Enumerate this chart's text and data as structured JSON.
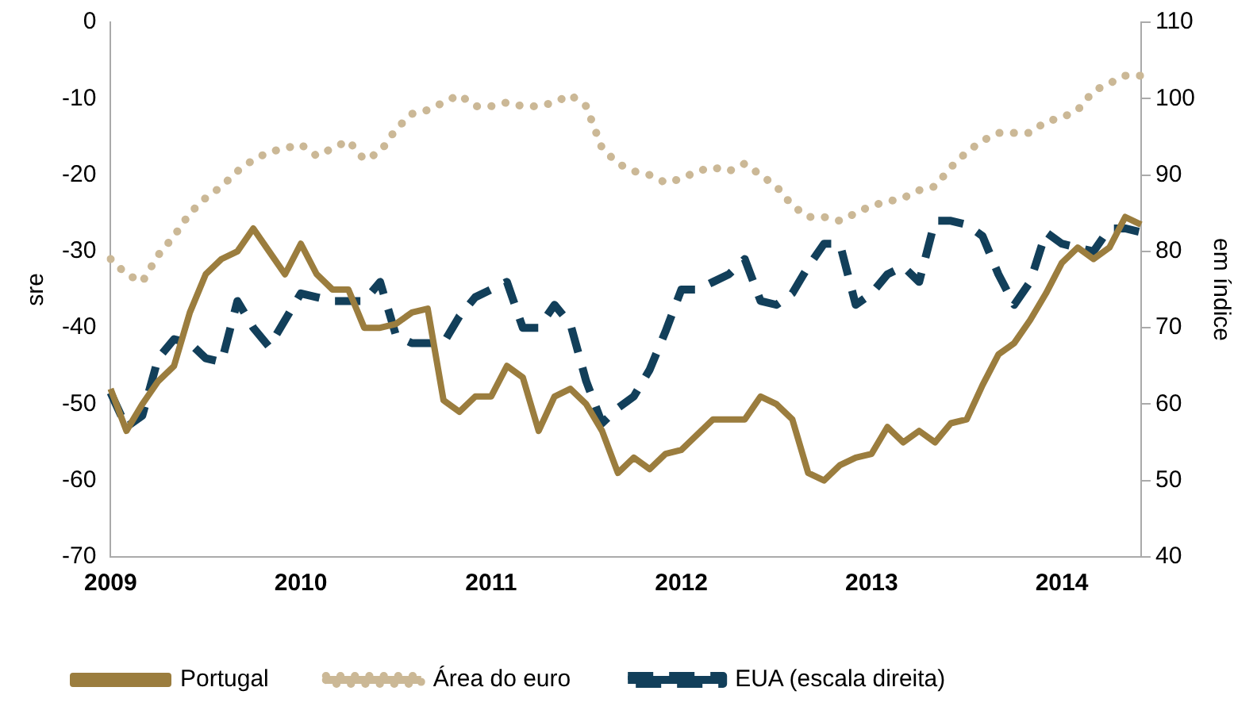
{
  "chart_data": {
    "type": "line",
    "ylabel": "sre",
    "y2label": "em índice",
    "categories": [
      "2009",
      null,
      null,
      null,
      null,
      null,
      null,
      null,
      null,
      null,
      null,
      null,
      "2010",
      null,
      null,
      null,
      null,
      null,
      null,
      null,
      null,
      null,
      null,
      null,
      "2011",
      null,
      null,
      null,
      null,
      null,
      null,
      null,
      null,
      null,
      null,
      null,
      "2012",
      null,
      null,
      null,
      null,
      null,
      null,
      null,
      null,
      null,
      null,
      null,
      "2013",
      null,
      null,
      null,
      null,
      null,
      null,
      null,
      null,
      null,
      null,
      null,
      "2014",
      null,
      null,
      null,
      null,
      null
    ],
    "ylim": [
      -70,
      0
    ],
    "yticks": [
      -70,
      -60,
      -50,
      -40,
      -30,
      -20,
      -10,
      0
    ],
    "y2lim": [
      40,
      110
    ],
    "y2ticks": [
      40,
      50,
      60,
      70,
      80,
      90,
      100,
      110
    ],
    "grid": false,
    "legend": "bottom",
    "marker": "none",
    "series": [
      {
        "name": "Portugal",
        "color": "#9b7d3e",
        "line_style": "solid",
        "values": [
          -48,
          -53.5,
          -50,
          -47,
          -45,
          -38,
          -33,
          -31,
          -30,
          -27,
          -30,
          -33,
          -29,
          -33,
          -35,
          -35,
          -40,
          -40,
          -39.5,
          -38,
          -37.5,
          -49.5,
          -51,
          -49,
          -49,
          -45,
          -46.5,
          -53.5,
          -49,
          -48,
          -50,
          -53.5,
          -59,
          -57,
          -58.5,
          -56.5,
          -56,
          -54,
          -52,
          -52,
          -52,
          -49,
          -50,
          -52,
          -59,
          -60,
          -58,
          -57,
          -56.5,
          -53,
          -55,
          -53.5,
          -55,
          -52.5,
          -52,
          -47.5,
          -43.5,
          -42,
          -39,
          -35.5,
          -31.5,
          -29.5,
          -31,
          -29.5,
          -25.5,
          -26.5
        ]
      },
      {
        "name": "Área do euro",
        "color": "#cbb896",
        "line_style": "dotted",
        "axis": "y2",
        "values": [
          79,
          77,
          76,
          79.5,
          82,
          85,
          87,
          88.5,
          90.5,
          92,
          93,
          93.5,
          94,
          92.5,
          93.5,
          94.5,
          92,
          93,
          96,
          98,
          98.5,
          99.5,
          100.5,
          99,
          99,
          99.5,
          99,
          99,
          99.5,
          100.5,
          99,
          93.5,
          91.5,
          90.5,
          90,
          89,
          89.5,
          90.5,
          91,
          90.5,
          91.5,
          90,
          88.5,
          86,
          84.5,
          84.5,
          84,
          85,
          86,
          86.5,
          87,
          88,
          88.5,
          91,
          93,
          94.5,
          95.5,
          95.5,
          95.5,
          97,
          97.5,
          98.5,
          101,
          102,
          103,
          103
        ]
      },
      {
        "name": "EUA (escala direita)",
        "color": "#123f5a",
        "line_style": "dashed",
        "axis": "y2",
        "values": [
          61.5,
          57,
          58.5,
          66,
          68.5,
          68,
          66,
          65.5,
          73.5,
          70,
          67.5,
          71,
          74.5,
          74,
          73.5,
          73.5,
          73.5,
          76,
          69,
          68,
          68,
          68,
          71.5,
          74,
          75,
          76,
          70,
          70,
          73,
          70.5,
          63,
          57.5,
          59.5,
          61,
          64.5,
          69.5,
          75,
          75,
          76,
          77,
          79,
          73.5,
          73,
          74.5,
          78,
          81,
          81,
          73,
          74.5,
          77,
          78,
          76,
          84,
          84,
          83.5,
          82,
          77,
          73,
          76,
          82.5,
          81,
          80.5,
          80,
          83,
          83,
          82.5
        ]
      }
    ]
  }
}
